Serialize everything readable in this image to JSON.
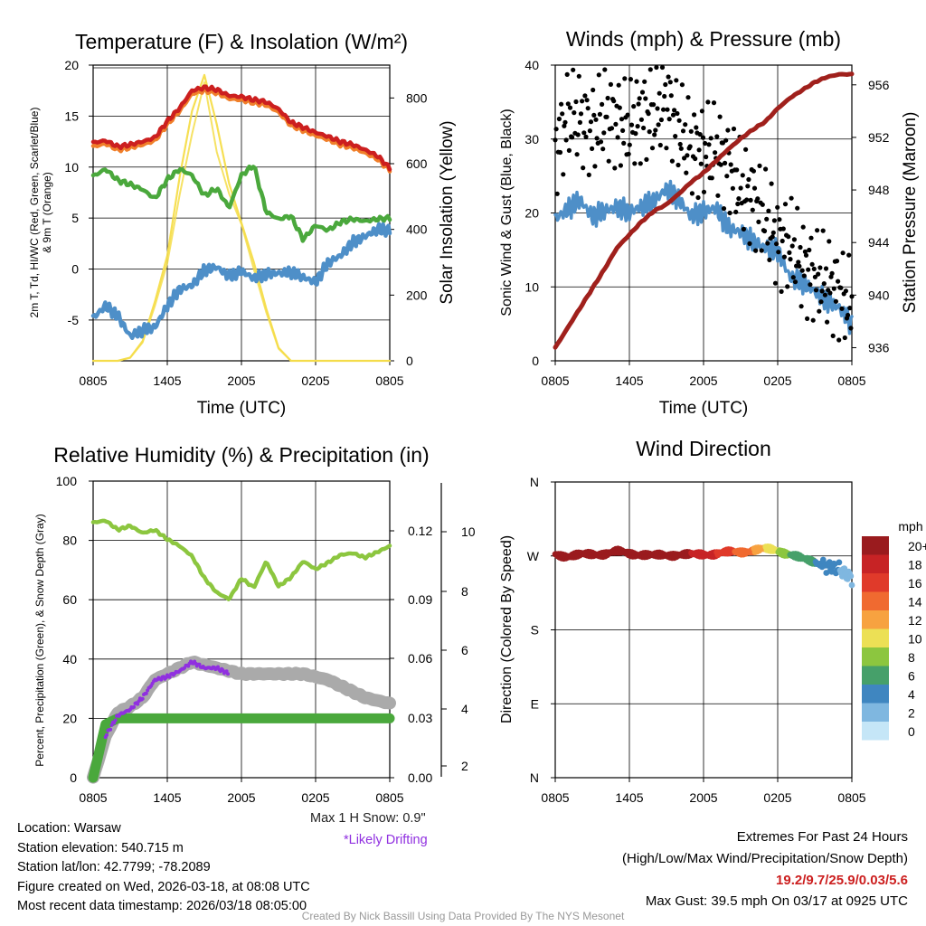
{
  "colors": {
    "red": "#cc1f1f",
    "orange": "#f07f2a",
    "green": "#4aa83c",
    "blue": "#4e8fc8",
    "yellow": "#f5dd4a",
    "maroon": "#a0201c",
    "black": "#000000",
    "gray": "#aaaaaa",
    "purple": "#9030e0",
    "lime": "#8cc63f"
  },
  "x_ticks": [
    "0805",
    "1405",
    "2005",
    "0205",
    "0805"
  ],
  "chart_data": [
    {
      "type": "line",
      "panel": "temperature",
      "title": "Temperature (F) & Insolation (W/m²)",
      "xlabel": "Time (UTC)",
      "ylabel_left_line1": "2m T, Td, HI/WC (Red, Green, Scarlet/Blue)",
      "ylabel_left_line2": "& 9m T (Orange)",
      "ylabel_right": "Solar Insolation (Yellow)",
      "ylim": [
        -9,
        20
      ],
      "yticks": [
        20,
        15,
        10,
        5,
        0,
        -5
      ],
      "y2lim": [
        0,
        900
      ],
      "y2ticks": [
        800,
        600,
        400,
        200,
        0
      ],
      "x_hours": [
        0,
        1,
        2,
        3,
        4,
        5,
        6,
        7,
        8,
        9,
        10,
        11,
        12,
        13,
        14,
        15,
        16,
        17,
        18,
        19,
        20,
        21,
        22,
        23,
        24
      ],
      "series": [
        {
          "name": "2m T (Red)",
          "axis": "left",
          "color": "#cc1f1f",
          "values": [
            12.4,
            12.6,
            12.0,
            12.2,
            12.5,
            12.9,
            14.5,
            15.8,
            17.5,
            17.8,
            17.6,
            17.0,
            16.9,
            16.6,
            16.4,
            15.7,
            14.4,
            13.9,
            13.4,
            13.0,
            12.5,
            12.2,
            11.7,
            11.1,
            9.9
          ]
        },
        {
          "name": "9m T (Orange)",
          "axis": "left",
          "color": "#f07f2a",
          "values": [
            12.0,
            12.3,
            11.7,
            11.9,
            12.2,
            12.6,
            14.2,
            15.5,
            17.2,
            17.5,
            17.3,
            16.7,
            16.6,
            16.3,
            16.1,
            15.4,
            14.1,
            13.6,
            13.1,
            12.7,
            12.2,
            11.9,
            11.4,
            10.8,
            9.7
          ]
        },
        {
          "name": "Td (Green)",
          "axis": "left",
          "color": "#4aa83c",
          "values": [
            9.1,
            9.8,
            8.7,
            8.3,
            7.8,
            6.9,
            8.8,
            9.8,
            9.2,
            7.2,
            7.9,
            6.0,
            9.2,
            10.2,
            5.6,
            4.9,
            5.2,
            2.9,
            4.3,
            3.8,
            4.6,
            4.9,
            4.7,
            4.9,
            5.0
          ]
        },
        {
          "name": "HI/WC (Blue)",
          "axis": "left",
          "color": "#4e8fc8",
          "values": [
            -4.8,
            -3.6,
            -4.6,
            -6.6,
            -6.0,
            -5.7,
            -3.6,
            -2.0,
            -1.6,
            -0.1,
            0.2,
            -0.7,
            -0.2,
            -0.9,
            -0.5,
            -0.4,
            -0.3,
            -0.8,
            -1.3,
            0.6,
            1.3,
            2.6,
            3.2,
            3.9,
            3.8
          ]
        },
        {
          "name": "Solar Insolation (Yellow)",
          "axis": "right",
          "color": "#f5dd4a",
          "values": [
            0,
            0,
            0,
            10,
            60,
            180,
            320,
            560,
            760,
            870,
            720,
            540,
            420,
            300,
            160,
            40,
            0,
            0,
            0,
            0,
            0,
            0,
            0,
            0,
            0
          ]
        }
      ]
    },
    {
      "type": "line",
      "panel": "winds",
      "title": "Winds (mph) & Pressure (mb)",
      "xlabel": "Time (UTC)",
      "ylabel_left": "Sonic Wind & Gust (Blue, Black)",
      "ylabel_right": "Station Pressure (Maroon)",
      "ylim": [
        0,
        40
      ],
      "yticks": [
        40,
        30,
        20,
        10,
        0
      ],
      "y2lim": [
        935,
        957.5
      ],
      "y2ticks": [
        956,
        952,
        948,
        944,
        940,
        936
      ],
      "x_hours": [
        0,
        1,
        2,
        3,
        4,
        5,
        6,
        7,
        8,
        9,
        10,
        11,
        12,
        13,
        14,
        15,
        16,
        17,
        18,
        19,
        20,
        21,
        22,
        23,
        24
      ],
      "series": [
        {
          "name": "Sonic Wind (Blue)",
          "axis": "left",
          "color": "#4e8fc8",
          "values": [
            19.2,
            20.5,
            21.8,
            19.5,
            20.3,
            20.8,
            20.1,
            20.9,
            21.6,
            23.3,
            21.8,
            19.6,
            20.2,
            20.7,
            18.0,
            17.4,
            16.1,
            15.3,
            14.9,
            11.3,
            10.6,
            9.4,
            8.1,
            7.2,
            4.8
          ]
        },
        {
          "name": "Gust (Black)",
          "axis": "left",
          "color": "#000000",
          "style": "dots",
          "values": [
            28.2,
            33.0,
            32.8,
            31.0,
            33.3,
            32.4,
            31.5,
            33.4,
            33.3,
            35.2,
            31.5,
            28.8,
            28.6,
            28.4,
            26.6,
            23.4,
            22.0,
            19.3,
            16.2,
            15.7,
            13.0,
            11.5,
            10.6,
            9.3,
            7.0
          ]
        },
        {
          "name": "Station Pressure (Maroon)",
          "axis": "right",
          "color": "#a0201c",
          "values": [
            936.0,
            937.5,
            939.0,
            940.5,
            942.0,
            943.6,
            944.6,
            945.6,
            946.4,
            946.9,
            947.7,
            948.6,
            949.3,
            950.2,
            951.1,
            951.9,
            952.6,
            953.2,
            954.2,
            955.0,
            955.6,
            956.2,
            956.6,
            956.8,
            956.8
          ]
        }
      ]
    },
    {
      "type": "line",
      "panel": "humidity",
      "title": "Relative Humidity (%) & Precipitation (in)",
      "ylabel_left": "Percent, Precipitation (Green), & Snow Depth (Gray)",
      "ylim": [
        0,
        100
      ],
      "yticks": [
        100,
        80,
        60,
        40,
        20,
        0
      ],
      "y2_precip_ticks": [
        "0.12",
        "0.09",
        "0.06",
        "0.03",
        "0.00"
      ],
      "y3_snow_ticks": [
        "10",
        "8",
        "6",
        "4",
        "2"
      ],
      "x_hours": [
        0,
        1,
        2,
        3,
        4,
        5,
        6,
        7,
        8,
        9,
        10,
        11,
        12,
        13,
        14,
        15,
        16,
        17,
        18,
        19,
        20,
        21,
        22,
        23,
        24
      ],
      "series": [
        {
          "name": "Relative Humidity",
          "axis": "left",
          "color": "#8cc63f",
          "values": [
            86.0,
            86.7,
            83.6,
            84.9,
            82.5,
            83.5,
            80.4,
            78.1,
            74.7,
            67.3,
            62.4,
            60.2,
            67.2,
            64.1,
            72.9,
            64.5,
            67.5,
            73.0,
            70.3,
            72.5,
            75.1,
            75.7,
            74.2,
            76.1,
            78.1
          ]
        },
        {
          "name": "Precipitation",
          "axis": "left",
          "color": "#4aa83c",
          "values": [
            0,
            18,
            20,
            20,
            20,
            20,
            20,
            20,
            20,
            20,
            20,
            20,
            20,
            20,
            20,
            20,
            20,
            20,
            20,
            20,
            20,
            20,
            20,
            20,
            20
          ]
        },
        {
          "name": "Snow Depth",
          "axis": "left",
          "color": "#aaaaaa",
          "values": [
            0,
            14,
            22,
            24,
            27,
            33,
            35,
            37,
            39,
            38,
            37,
            36,
            35,
            35,
            35,
            35,
            35,
            35,
            34,
            33,
            31,
            29,
            27,
            26,
            25
          ]
        },
        {
          "name": "Likely Drifting",
          "axis": "left",
          "color": "#9030e0",
          "style": "dots",
          "values": [
            null,
            14,
            21,
            23,
            27,
            33,
            34,
            36,
            39,
            37,
            37,
            35,
            null,
            null,
            null,
            null,
            null,
            null,
            null,
            null,
            null,
            null,
            null,
            null,
            null
          ]
        }
      ]
    },
    {
      "type": "scatter",
      "panel": "direction",
      "title": "Wind Direction",
      "ylabel_left": "Direction (Colored By Speed)",
      "yticks": [
        "N",
        "W",
        "S",
        "E",
        "N"
      ],
      "ylim": [
        0,
        360
      ],
      "x_hours": [
        0,
        1,
        2,
        3,
        4,
        5,
        6,
        7,
        8,
        9,
        10,
        11,
        12,
        13,
        14,
        15,
        16,
        17,
        18,
        19,
        20,
        21,
        22,
        23,
        24
      ],
      "series": [
        {
          "name": "Direction",
          "values": [
            272,
            270,
            271,
            272,
            273,
            275,
            273,
            272,
            270,
            271,
            272,
            271,
            272,
            273,
            274,
            275,
            277,
            278,
            277,
            272,
            266,
            263,
            258,
            252,
            244
          ]
        },
        {
          "name": "Speed",
          "values": [
            21,
            22,
            22,
            21,
            21,
            22,
            21,
            22,
            21,
            22,
            20,
            19,
            18,
            17,
            16,
            14,
            13,
            11,
            9,
            7,
            6,
            5,
            4,
            3,
            2
          ]
        }
      ],
      "legend_title": "mph",
      "legend_labels": [
        "20+",
        "18",
        "16",
        "14",
        "12",
        "10",
        "8",
        "6",
        "4",
        "2",
        "0"
      ],
      "legend_colors": [
        "#9a1b1e",
        "#c72325",
        "#e03a2a",
        "#f06a30",
        "#f7a240",
        "#ece055",
        "#8cc63f",
        "#46a06a",
        "#3f86c0",
        "#7fb7e0",
        "#c5e6f7"
      ]
    }
  ],
  "hum_labels": {
    "snow_max": "Max 1 H Snow: 0.9\"",
    "drift": "*Likely Drifting"
  },
  "footer": {
    "location": "Location: Warsaw",
    "elevation": "Station elevation: 540.715 m",
    "latlon": "Station lat/lon: 42.7799; -78.2089",
    "created": "Figure created on Wed, 2026-03-18, at 08:08 UTC",
    "recent": "Most recent data timestamp: 2026/03/18 08:05:00",
    "extremes_title": "Extremes For Past 24 Hours",
    "extremes_sub": "(High/Low/Max Wind/Precipitation/Snow Depth)",
    "extremes_values": "19.2/9.7/25.9/0.03/5.6",
    "max_gust": "Max Gust: 39.5 mph On 03/17 at 0925 UTC",
    "credit": "Created By Nick Bassill Using Data Provided By The NYS Mesonet"
  }
}
